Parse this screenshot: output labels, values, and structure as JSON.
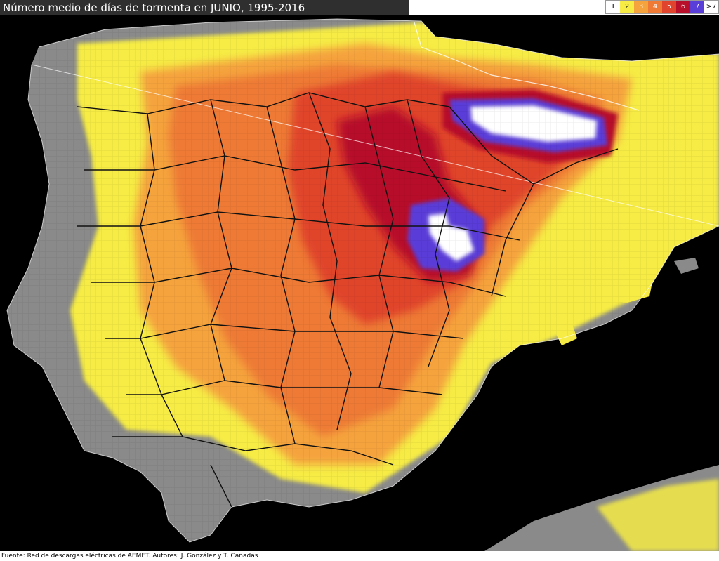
{
  "title": "Número medio de días de tormenta en JUNIO, 1995-2016",
  "source": "Fuente: Red de descargas eléctricas de AEMET. Autores: J. González y T. Cañadas",
  "legend": [
    {
      "label": "1",
      "color": "#ffffff"
    },
    {
      "label": "2",
      "color": "#f6ec45"
    },
    {
      "label": "3",
      "color": "#f5a33c"
    },
    {
      "label": "4",
      "color": "#ee7a35"
    },
    {
      "label": "5",
      "color": "#e0442c"
    },
    {
      "label": "6",
      "color": "#b8102a"
    },
    {
      "label": "7",
      "color": "#5a3ed8"
    },
    {
      "label": ">7",
      "color": "#ffffff"
    }
  ],
  "colors": {
    "sea": "#000000",
    "land_low": "#8a8a8a",
    "border_line": "#111111",
    "coast_line": "#ffffff"
  }
}
